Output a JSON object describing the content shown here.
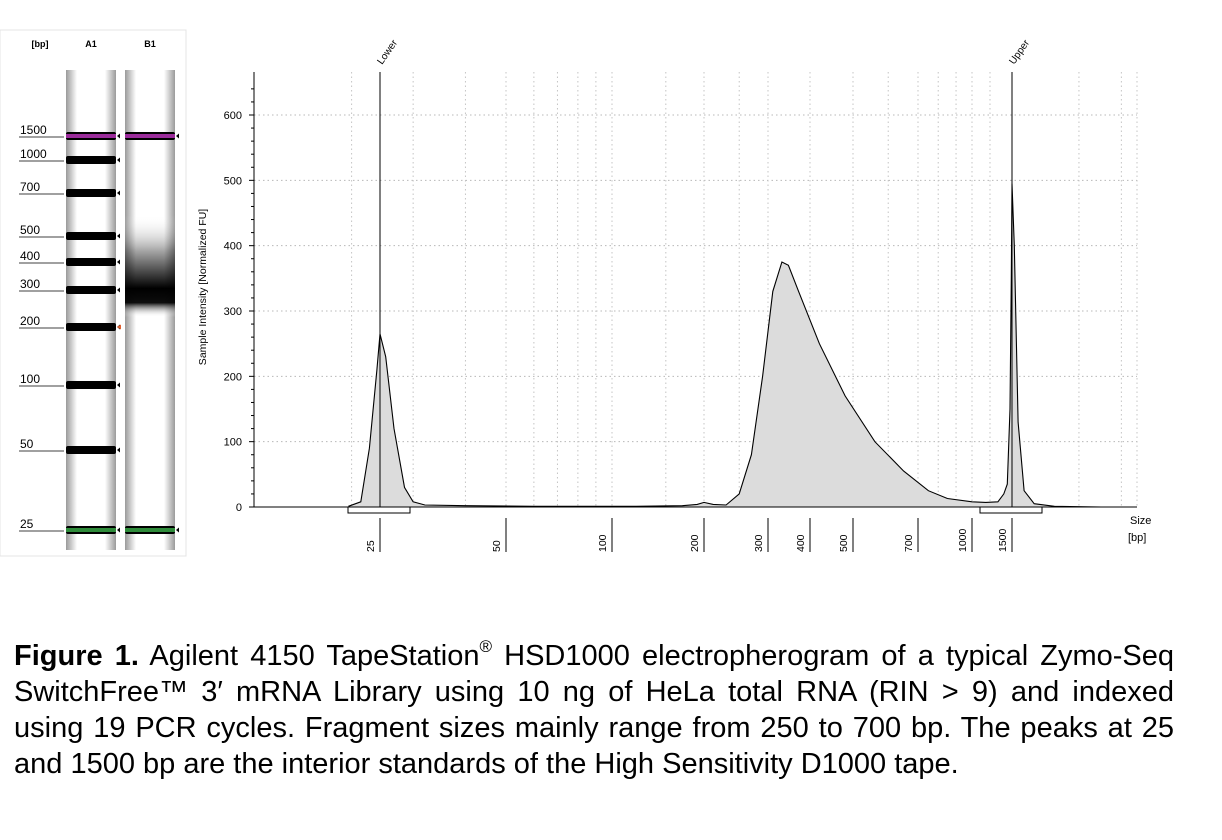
{
  "gel": {
    "unit_header": "[bp]",
    "lanes": [
      "A1",
      "B1"
    ],
    "ladder": [
      {
        "label": "1500",
        "size": 1500,
        "color": "#9b2c9b"
      },
      {
        "label": "1000",
        "size": 1000,
        "color": "#000000"
      },
      {
        "label": "700",
        "size": 700,
        "color": "#000000"
      },
      {
        "label": "500",
        "size": 500,
        "color": "#000000"
      },
      {
        "label": "400",
        "size": 400,
        "color": "#000000"
      },
      {
        "label": "300",
        "size": 300,
        "color": "#000000"
      },
      {
        "label": "200",
        "size": 200,
        "color": "#000000"
      },
      {
        "label": "100",
        "size": 100,
        "color": "#000000"
      },
      {
        "label": "50",
        "size": 50,
        "color": "#000000"
      },
      {
        "label": "25",
        "size": 25,
        "color": "#2e8b3a"
      }
    ],
    "sample_bands": [
      {
        "size": 1500,
        "color": "#9b2c9b"
      },
      {
        "size": 25,
        "color": "#2e8b3a"
      }
    ],
    "sample_smear": {
      "from": 250,
      "to": 700,
      "peak": 350
    }
  },
  "chart_data": {
    "type": "area",
    "ylabel": "Sample Intensity [Normalized FU]",
    "xlabel": "Size\n[bp]",
    "x_scale": "log",
    "ylim": [
      0,
      650
    ],
    "yticks": [
      0,
      100,
      200,
      300,
      400,
      500,
      600
    ],
    "xticks": [
      "25",
      "50",
      "100",
      "200",
      "300",
      "400",
      "500",
      "700",
      "1000",
      "1500"
    ],
    "grid": true,
    "markers": [
      {
        "label": "Lower",
        "size": 25
      },
      {
        "label": "Upper",
        "size": 1500
      }
    ],
    "series": [
      {
        "points": [
          [
            19.5,
            1
          ],
          [
            21.5,
            8
          ],
          [
            23,
            90
          ],
          [
            24.4,
            210
          ],
          [
            25,
            265
          ],
          [
            25.8,
            230
          ],
          [
            27,
            120
          ],
          [
            28.6,
            30
          ],
          [
            30,
            8
          ],
          [
            32,
            3
          ],
          [
            40,
            2
          ],
          [
            60,
            1
          ],
          [
            120,
            1
          ],
          [
            170,
            2
          ],
          [
            190,
            4
          ],
          [
            200,
            7
          ],
          [
            212,
            4
          ],
          [
            230,
            3
          ],
          [
            250,
            20
          ],
          [
            270,
            80
          ],
          [
            290,
            200
          ],
          [
            310,
            330
          ],
          [
            330,
            375
          ],
          [
            345,
            370
          ],
          [
            370,
            330
          ],
          [
            420,
            250
          ],
          [
            480,
            170
          ],
          [
            560,
            100
          ],
          [
            650,
            55
          ],
          [
            750,
            25
          ],
          [
            850,
            13
          ],
          [
            1000,
            8
          ],
          [
            1150,
            7
          ],
          [
            1300,
            8
          ],
          [
            1380,
            20
          ],
          [
            1430,
            35
          ],
          [
            1470,
            150
          ],
          [
            1490,
            350
          ],
          [
            1500,
            495
          ],
          [
            1515,
            400
          ],
          [
            1540,
            130
          ],
          [
            1580,
            25
          ],
          [
            1650,
            5
          ],
          [
            1800,
            1
          ],
          [
            2200,
            0
          ]
        ]
      }
    ]
  },
  "caption": {
    "label": "Figure 1.",
    "text_1": " Agilent 4150 TapeStation",
    "reg": "®",
    "text_2": " HSD1000 electropherogram of a typical Zymo-Seq SwitchFree™ 3′ mRNA Library using 10 ng of HeLa total RNA (RIN > 9) and indexed using 19 PCR cycles. Fragment sizes mainly range from 250 to 700 bp. The peaks at 25 and 1500 bp are the interior standards of the High Sensitivity D1000 tape."
  }
}
